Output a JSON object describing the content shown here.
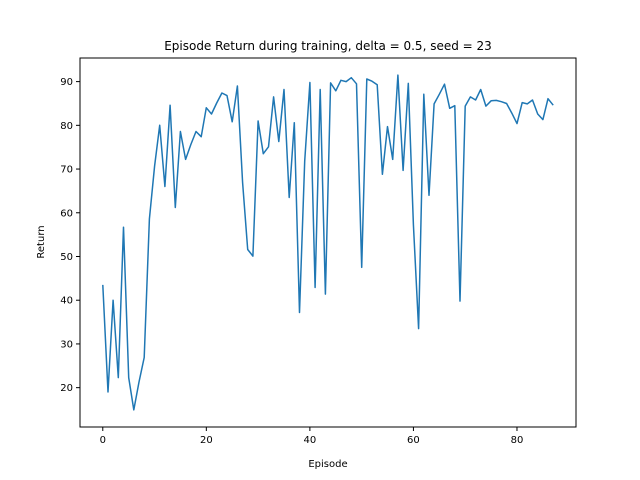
{
  "chart_data": {
    "type": "line",
    "title": "Episode Return during training, delta = 0.5, seed = 23",
    "xlabel": "Episode",
    "ylabel": "Return",
    "xlim": [
      -4.4,
      91.4
    ],
    "ylim": [
      11.0,
      95.4
    ],
    "xticks": [
      0,
      20,
      40,
      60,
      80
    ],
    "yticks": [
      20,
      30,
      40,
      50,
      60,
      70,
      80,
      90
    ],
    "grid": false,
    "series": [
      {
        "color": "#1f77b4",
        "x": [
          0,
          1,
          2,
          3,
          4,
          5,
          6,
          7,
          8,
          9,
          10,
          11,
          12,
          13,
          14,
          15,
          16,
          17,
          18,
          19,
          20,
          21,
          22,
          23,
          24,
          25,
          26,
          27,
          28,
          29,
          30,
          31,
          32,
          33,
          34,
          35,
          36,
          37,
          38,
          39,
          40,
          41,
          42,
          43,
          44,
          45,
          46,
          47,
          48,
          49,
          50,
          51,
          52,
          53,
          54,
          55,
          56,
          57,
          58,
          59,
          60,
          61,
          62,
          63,
          64,
          65,
          66,
          67,
          68,
          69,
          70,
          71,
          72,
          73,
          74,
          75,
          76,
          77,
          78,
          79,
          80,
          81,
          82,
          83,
          84,
          85,
          86,
          87
        ],
        "y": [
          43.5,
          19.0,
          40.0,
          22.3,
          56.7,
          22.3,
          14.9,
          21.3,
          26.9,
          58.6,
          70.7,
          80.0,
          66.0,
          84.6,
          61.2,
          78.6,
          72.2,
          75.6,
          78.6,
          77.4,
          84.0,
          82.6,
          85.1,
          87.4,
          86.8,
          80.8,
          89.0,
          66.9,
          51.6,
          50.1,
          81.0,
          73.5,
          75.1,
          86.5,
          76.3,
          88.2,
          63.5,
          80.6,
          37.2,
          71.8,
          89.8,
          42.9,
          88.2,
          41.4,
          89.7,
          87.9,
          90.3,
          90.0,
          90.9,
          89.5,
          47.5,
          90.6,
          90.1,
          89.3,
          68.8,
          79.7,
          72.2,
          91.5,
          69.7,
          89.6,
          57.3,
          33.5,
          87.1,
          64.0,
          84.9,
          87.1,
          89.4,
          83.9,
          84.5,
          39.8,
          84.4,
          86.5,
          85.8,
          88.2,
          84.4,
          85.6,
          85.7,
          85.4,
          85.0,
          82.8,
          80.4,
          85.2,
          84.9,
          85.8,
          82.6,
          81.3,
          86.1,
          84.6
        ]
      }
    ]
  }
}
